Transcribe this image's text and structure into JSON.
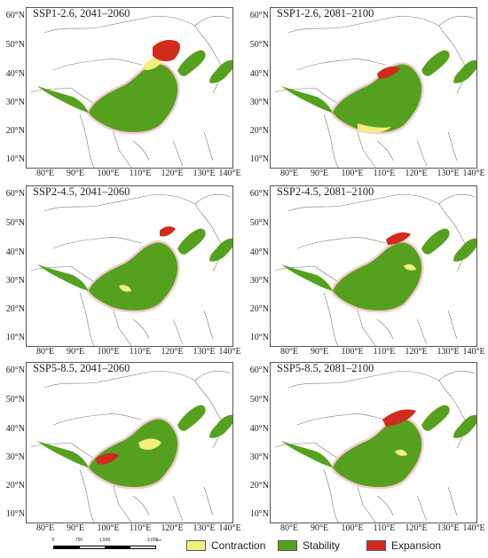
{
  "panels": [
    {
      "title": "SSP1-2.6, 2041–2060"
    },
    {
      "title": "SSP1-2.6, 2081–2100"
    },
    {
      "title": "SSP2-4.5, 2041–2060"
    },
    {
      "title": "SSP2-4.5, 2081–2100"
    },
    {
      "title": "SSP5-8.5, 2041–2060"
    },
    {
      "title": "SSP5-8.5, 2081–2100"
    }
  ],
  "latitude_labels": [
    "60°N",
    "50°N",
    "40°N",
    "30°N",
    "20°N",
    "10°N"
  ],
  "longitude_labels": [
    "80°E",
    "90°E",
    "100°E",
    "110°E",
    "120°E",
    "130°E",
    "140°E"
  ],
  "legend": {
    "contraction": {
      "label": "Contraction",
      "color": "#f3f07a"
    },
    "stability": {
      "label": "Stability",
      "color": "#55a11f"
    },
    "expansion": {
      "label": "Expansion",
      "color": "#d22a1c"
    }
  },
  "scalebar": {
    "ticks": [
      "0",
      "750",
      "1,500",
      "3,000"
    ],
    "unit": "km"
  },
  "colors": {
    "boundary": "#777777",
    "halo": "#f6c9cf"
  }
}
